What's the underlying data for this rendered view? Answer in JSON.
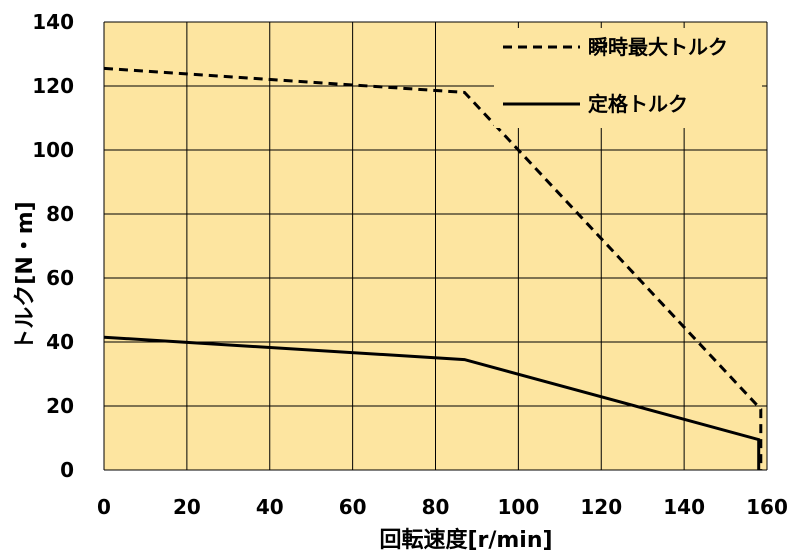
{
  "chart_data": {
    "type": "line",
    "title": "",
    "xlabel": "回転速度[r/min]",
    "ylabel": "トルク[N・m]",
    "xlim": [
      0,
      160
    ],
    "ylim": [
      0,
      140
    ],
    "xticks": [
      0,
      20,
      40,
      60,
      80,
      100,
      120,
      140,
      160
    ],
    "yticks": [
      0,
      20,
      40,
      60,
      80,
      100,
      120,
      140
    ],
    "grid": true,
    "legend_position": "top-right",
    "background_color": "#fde5a0",
    "series": [
      {
        "name": "瞬時最大トルク",
        "style": "dashed",
        "color": "#000000",
        "x": [
          0,
          87,
          158.5,
          158.5
        ],
        "y": [
          125.5,
          118,
          19,
          0
        ]
      },
      {
        "name": "定格トルク",
        "style": "solid",
        "color": "#000000",
        "x": [
          0,
          87,
          158,
          158
        ],
        "y": [
          41.5,
          34.5,
          9.5,
          0
        ]
      }
    ]
  }
}
